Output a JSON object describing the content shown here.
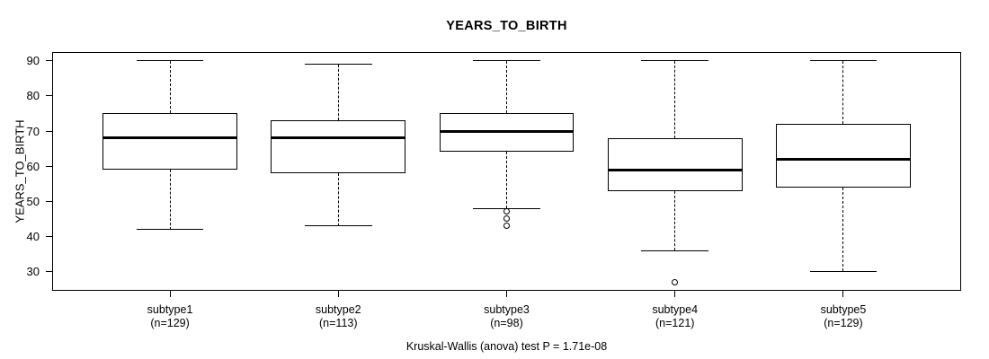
{
  "title": "YEARS_TO_BIRTH",
  "y_axis_label": "YEARS_TO_BIRTH",
  "footer": "Kruskal-Wallis (anova) test P = 1.71e-08",
  "chart_data": {
    "type": "boxplot",
    "title": "YEARS_TO_BIRTH",
    "xlabel": "",
    "ylabel": "YEARS_TO_BIRTH",
    "yticks": [
      30,
      40,
      50,
      60,
      70,
      80,
      90
    ],
    "ylim": [
      24.5,
      92.5
    ],
    "grid": false,
    "line_color": "#000000",
    "box_fill": "#ffffff",
    "categories": [
      "subtype1",
      "subtype2",
      "subtype3",
      "subtype4",
      "subtype5"
    ],
    "counts": [
      129,
      113,
      98,
      121,
      129
    ],
    "series": [
      {
        "label": "subtype1",
        "n": 129,
        "whisker_low": 42,
        "q1": 59,
        "median": 68,
        "q3": 75,
        "whisker_high": 90,
        "outliers": []
      },
      {
        "label": "subtype2",
        "n": 113,
        "whisker_low": 43,
        "q1": 58,
        "median": 68,
        "q3": 73,
        "whisker_high": 89,
        "outliers": []
      },
      {
        "label": "subtype3",
        "n": 98,
        "whisker_low": 48,
        "q1": 64,
        "median": 70,
        "q3": 75,
        "whisker_high": 90,
        "outliers": [
          47,
          45,
          43
        ]
      },
      {
        "label": "subtype4",
        "n": 121,
        "whisker_low": 36,
        "q1": 53,
        "median": 59,
        "q3": 68,
        "whisker_high": 90,
        "outliers": [
          27
        ]
      },
      {
        "label": "subtype5",
        "n": 129,
        "whisker_low": 30,
        "q1": 54,
        "median": 62,
        "q3": 72,
        "whisker_high": 90,
        "outliers": []
      }
    ],
    "annotation": "Kruskal-Wallis (anova) test P = 1.71e-08"
  }
}
